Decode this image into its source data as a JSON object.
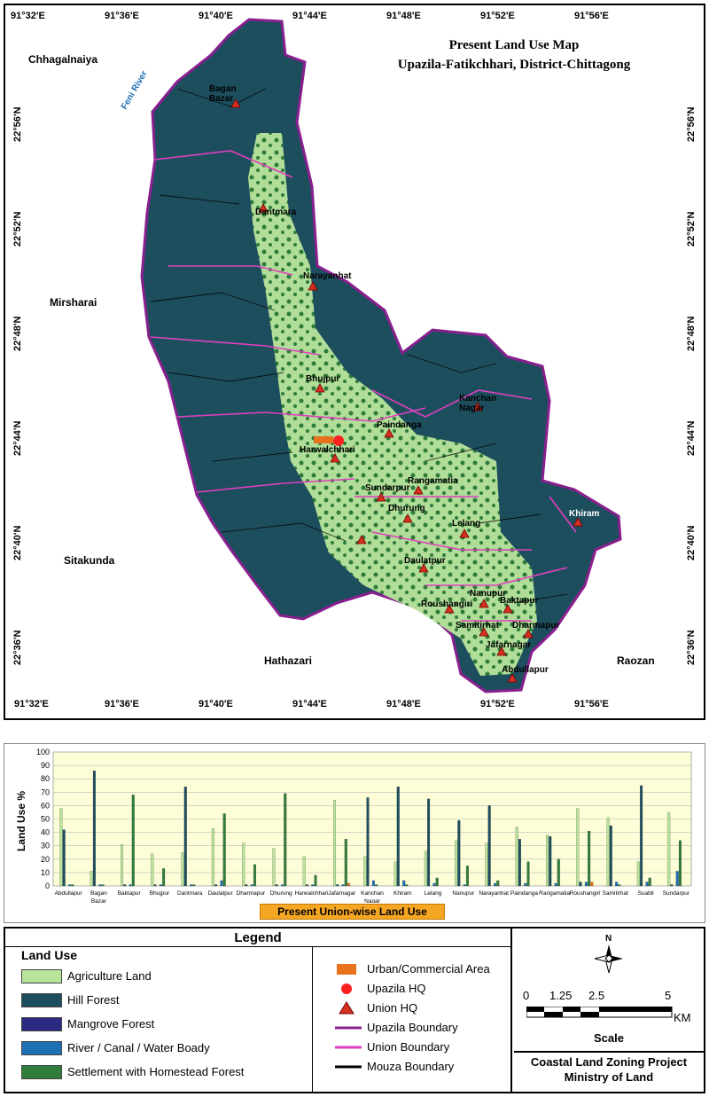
{
  "map": {
    "title_line1": "Present Land Use  Map",
    "title_line2": "Upazila-Fatikchhari,  District-Chittagong",
    "lon_labels": [
      "91°32'E",
      "91°36'E",
      "91°40'E",
      "91°44'E",
      "91°48'E",
      "91°52'E",
      "91°56'E"
    ],
    "lat_labels": [
      "22°56'N",
      "22°52'N",
      "22°48'N",
      "22°44'N",
      "22°40'N",
      "22°36'N"
    ],
    "neighbors": {
      "chhagalnaiya": "Chhagalnaiya",
      "mirsharai": "Mirsharai",
      "sitakunda": "Sitakunda",
      "hathazari": "Hathazari",
      "raozan": "Raozan"
    },
    "river_label": "Feni River",
    "unions": [
      "Bagan Bazar",
      "Dantmara",
      "Narayanhat",
      "Bhujpur",
      "Harwalchhari",
      "Paindanga",
      "Kanchan Nagar",
      "Sundarpur",
      "Rangamatia",
      "Dhurung",
      "Lelang",
      "Daulatpur",
      "Nanupur",
      "Roushangiri",
      "Baktapur",
      "Samitirhat",
      "Dharmapur",
      "Jafarnagar",
      "Abdullapur",
      "Khiram"
    ],
    "colors": {
      "hill": "#1d4e5e",
      "agri": "#b8e49a",
      "settlement": "#2f7d3a",
      "boundary": "#8a1f8f"
    }
  },
  "chart_data": {
    "type": "bar",
    "ylabel": "Land Use %",
    "ylim": [
      0,
      100
    ],
    "yticks": [
      0,
      10,
      20,
      30,
      40,
      50,
      60,
      70,
      80,
      90,
      100
    ],
    "categories": [
      "Abdullapur",
      "Bagan Bazar",
      "Baktapur",
      "Bhujpur",
      "Dantmara",
      "Daulatpur",
      "Dharmapur",
      "Dhurung",
      "Harwalchhari",
      "Jafarnagar",
      "Kanchan Nagar",
      "Khiram",
      "Lelang",
      "Nanupur",
      "Narayanhat",
      "Paindanga",
      "Rangamatia",
      "Roushangiri",
      "Samitirhat",
      "Suabil",
      "Sundarpur"
    ],
    "series": [
      {
        "name": "Agriculture Land",
        "color": "#b8e49a",
        "values": [
          58,
          11,
          31,
          24,
          25,
          43,
          32,
          28,
          22,
          64,
          22,
          18,
          26,
          34,
          32,
          44,
          38,
          58,
          51,
          18,
          55
        ]
      },
      {
        "name": "Hill Forest",
        "color": "#1d4e5e",
        "values": [
          42,
          86,
          1,
          1,
          74,
          1,
          1,
          1,
          1,
          1,
          66,
          74,
          65,
          49,
          60,
          35,
          37,
          3,
          45,
          75,
          1
        ]
      },
      {
        "name": "Mangrove Forest",
        "color": "#2a2a80",
        "values": [
          0,
          0,
          0,
          0,
          0,
          0,
          0,
          0,
          0,
          0,
          0,
          0,
          0,
          0,
          0,
          0,
          0,
          0,
          0,
          0,
          0
        ]
      },
      {
        "name": "River / Canal / Water Boady",
        "color": "#1f6fb5",
        "values": [
          1,
          1,
          1,
          1,
          1,
          4,
          1,
          1,
          1,
          1,
          4,
          4,
          2,
          1,
          2,
          2,
          2,
          3,
          3,
          3,
          11
        ]
      },
      {
        "name": "Settlement with Homestead Forest",
        "color": "#2f7d3a",
        "values": [
          1,
          1,
          68,
          13,
          1,
          54,
          16,
          69,
          8,
          35,
          1,
          1,
          6,
          15,
          4,
          18,
          20,
          41,
          1,
          6,
          34
        ]
      },
      {
        "name": "Urban/Commercial Area",
        "color": "#e8731c",
        "values": [
          0,
          0,
          0,
          0,
          0,
          0,
          0,
          0,
          0,
          2,
          0,
          0,
          0,
          0,
          0,
          0,
          0,
          3,
          0,
          0,
          0
        ]
      }
    ]
  },
  "chart_caption": "Present Union-wise Land Use",
  "legend": {
    "title": "Legend",
    "land_use_heading": "Land Use",
    "left_items": [
      "Agriculture Land",
      "Hill Forest",
      "Mangrove Forest",
      "River / Canal / Water Boady",
      "Settlement with Homestead Forest"
    ],
    "left_colors": [
      "#b8e49a",
      "#1d4e5e",
      "#2a2a80",
      "#1f6fb5",
      "#2f7d3a"
    ],
    "right_items": [
      "Urban/Commercial Area",
      "Upazila HQ",
      "Union HQ",
      "Upazila Boundary",
      "Union Boundary",
      "Mouza Boundary"
    ],
    "right_colors": [
      "#e8731c",
      "#ff2020",
      "#d43020",
      "#8a1f8f",
      "#e040c0",
      "#000000"
    ]
  },
  "scale": {
    "north": "N",
    "ticks": [
      "0",
      "1.25",
      "2.5",
      "5"
    ],
    "unit": "KM",
    "label": "Scale"
  },
  "credits": {
    "line1": "Coastal Land Zoning Project",
    "line2": "Ministry of Land"
  }
}
